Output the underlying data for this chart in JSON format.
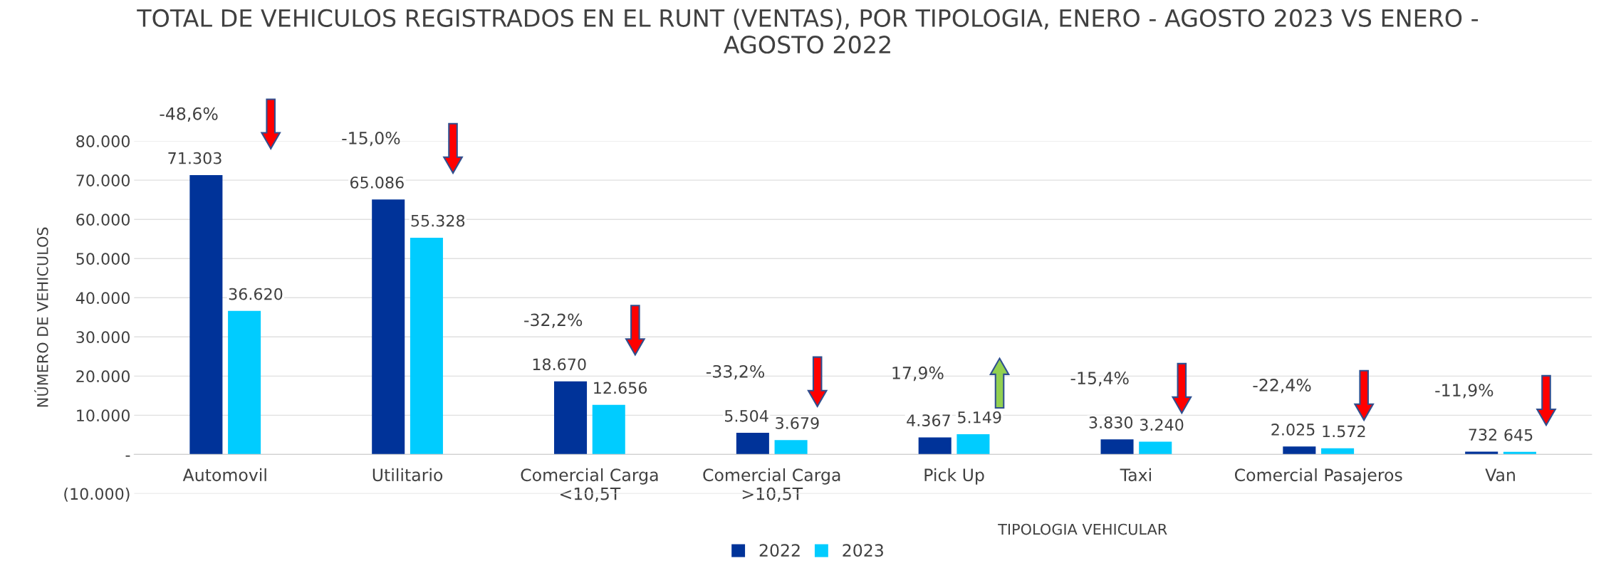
{
  "chart_data": {
    "type": "bar",
    "title": "TOTAL DE VEHICULOS REGISTRADOS EN EL RUNT (VENTAS), POR TIPOLOGIA, ENERO - AGOSTO 2023 VS ENERO -\nAGOSTO 2022",
    "xlabel": "TIPOLOGIA VEHICULAR",
    "ylabel": "NÚMERO DE VEHICULOS",
    "categories": [
      "Automovil",
      "Utilitario",
      "Comercial Carga\n<10,5T",
      "Comercial Carga\n>10,5T",
      "Pick Up",
      "Taxi",
      "Comercial Pasajeros",
      "Van"
    ],
    "series": [
      {
        "name": "2022",
        "color": "#003399",
        "values": [
          71303,
          65086,
          18670,
          5504,
          4367,
          3830,
          2025,
          732
        ]
      },
      {
        "name": "2023",
        "color": "#00ccff",
        "values": [
          36620,
          55328,
          12656,
          3679,
          5149,
          3240,
          1572,
          645
        ]
      }
    ],
    "value_labels": [
      [
        "71.303",
        "65.086",
        "18.670",
        "5.504",
        "4.367",
        "3.830",
        "2.025",
        "732"
      ],
      [
        "36.620",
        "55.328",
        "12.656",
        "3.679",
        "5.149",
        "3.240",
        "1.572",
        "645"
      ]
    ],
    "ylim": [
      -10000,
      80000
    ],
    "yticks": [
      {
        "value": -10000,
        "label": "(10.000)"
      },
      {
        "value": 0,
        "label": "-"
      },
      {
        "value": 10000,
        "label": "10.000"
      },
      {
        "value": 20000,
        "label": "20.000"
      },
      {
        "value": 30000,
        "label": "30.000"
      },
      {
        "value": 40000,
        "label": "40.000"
      },
      {
        "value": 50000,
        "label": "50.000"
      },
      {
        "value": 60000,
        "label": "60.000"
      },
      {
        "value": 70000,
        "label": "70.000"
      },
      {
        "value": 80000,
        "label": "80.000"
      }
    ],
    "grid": "y",
    "legend": "bottom",
    "annotations": [
      "-48,6%",
      "-15,0%",
      "-32,2%",
      "-33,2%",
      "17,9%",
      "-15,4%",
      "-22,4%",
      "-11,9%"
    ]
  }
}
